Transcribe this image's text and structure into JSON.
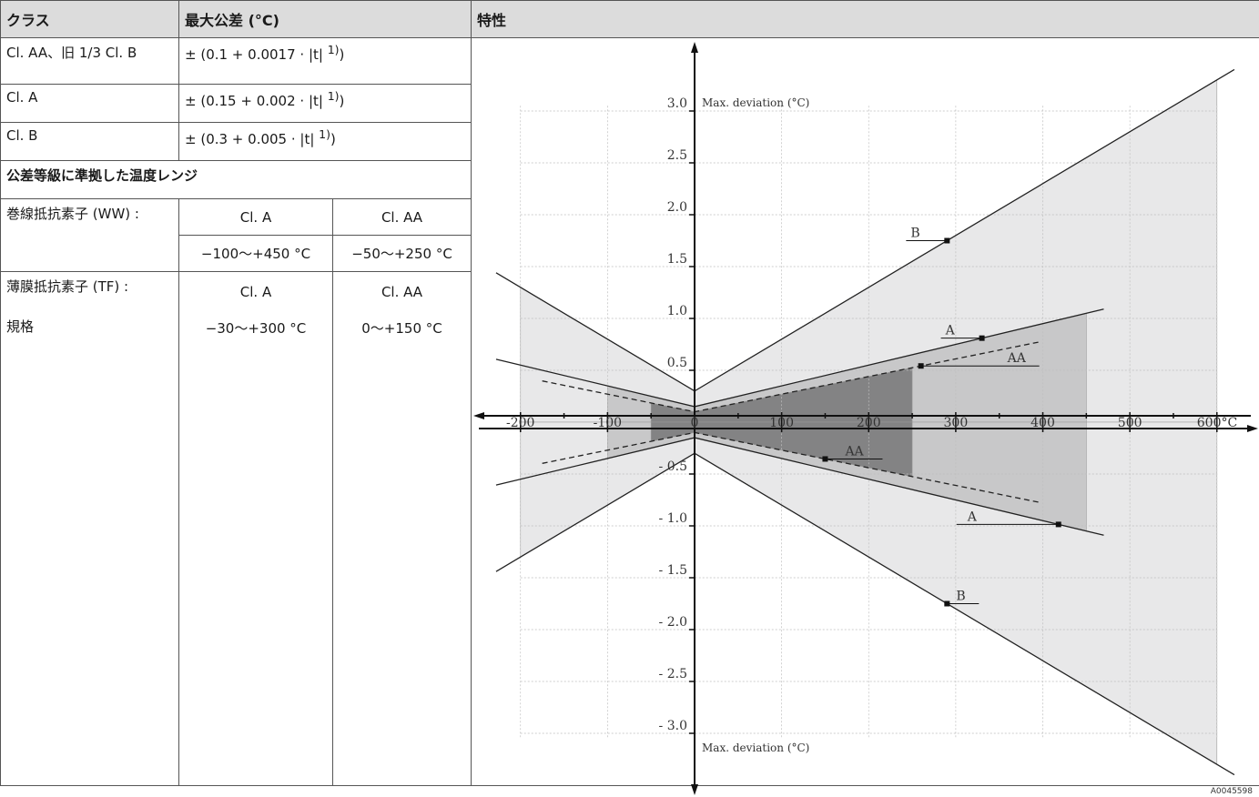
{
  "table": {
    "headers": {
      "class": "クラス",
      "tolerance": "最大公差 (°C)",
      "characteristics": "特性"
    },
    "rows": [
      {
        "class": "Cl. AA、旧 1/3 Cl. B",
        "tolerance": "± (0.1 + 0.0017 · |t| ",
        "footnote": "1)",
        "tail": ")"
      },
      {
        "class": "Cl. A",
        "tolerance": "± (0.15 + 0.002 · |t| ",
        "footnote": "1)",
        "tail": ")"
      },
      {
        "class": "Cl. B",
        "tolerance": "± (0.3 + 0.005 · |t| ",
        "footnote": "1)",
        "tail": ")"
      }
    ],
    "range_heading": "公差等級に準拠した温度レンジ",
    "ww": {
      "label": "巻線抵抗素子 (WW) :",
      "col1": "Cl. A",
      "col2": "Cl. AA",
      "val1": "−100〜+450 °C",
      "val2": "−50〜+250 °C"
    },
    "tf": {
      "label": "薄膜抵抗素子 (TF) :",
      "col1": "Cl. A",
      "col2": "Cl. AA",
      "std_label": "規格",
      "val1": "−30〜+300 °C",
      "val2": "0〜+150 °C"
    }
  },
  "chart_data": {
    "type": "line",
    "x_ticks": [
      "-200",
      "-100",
      "0",
      "100",
      "200",
      "300",
      "400",
      "500",
      "600°C"
    ],
    "x_tick_values": [
      -200,
      -100,
      0,
      100,
      200,
      300,
      400,
      500,
      600
    ],
    "y_ticks_pos": [
      "0.5",
      "1.0",
      "1.5",
      "2.0",
      "2.5",
      "3.0"
    ],
    "y_ticks_neg": [
      "- 0.5",
      "- 1.0",
      "- 1.5",
      "- 2.0",
      "- 2.5",
      "- 3.0"
    ],
    "y_tick_values": [
      0.5,
      1.0,
      1.5,
      2.0,
      2.5,
      3.0
    ],
    "ylabel_top": "Max. deviation (°C)",
    "ylabel_bottom": "Max. deviation (°C)",
    "xlim": [
      -200,
      600
    ],
    "ylim": [
      -3.0,
      3.0
    ],
    "grid": true,
    "series": [
      {
        "name": "B",
        "intercept": 0.3,
        "slope": 0.005,
        "x": [
          -200,
          600
        ],
        "range": [
          -200,
          600
        ],
        "label_x": 290
      },
      {
        "name": "A",
        "intercept": 0.15,
        "slope": 0.002,
        "x": [
          -100,
          450
        ],
        "range": [
          -100,
          450
        ],
        "label_x": 330
      },
      {
        "name": "AA",
        "intercept": 0.1,
        "slope": 0.0017,
        "x": [
          -50,
          250
        ],
        "range": [
          -50,
          250
        ],
        "label_x_pos": 260,
        "label_x_neg": 150
      }
    ],
    "annotation_code": "A0045598",
    "colors": {
      "b_fill": "#e8e8e9",
      "a_fill": "#c8c8c9",
      "aa_fill": "#838384",
      "line": "#222222",
      "grid": "#bfbfbf"
    }
  }
}
